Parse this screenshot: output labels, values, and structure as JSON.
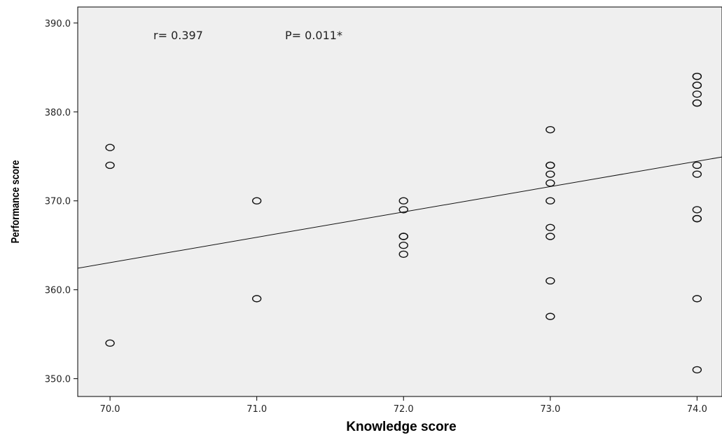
{
  "chart_data": {
    "type": "scatter",
    "title": "",
    "xlabel": "Knowledge score",
    "ylabel": "Performance score",
    "xlim": [
      69.78,
      74.17
    ],
    "ylim": [
      348.0,
      391.8
    ],
    "x_ticks": [
      70.0,
      71.0,
      72.0,
      73.0,
      74.0
    ],
    "x_tick_labels": [
      "70.0",
      "71.0",
      "72.0",
      "73.0",
      "74.0"
    ],
    "y_ticks": [
      350.0,
      360.0,
      370.0,
      380.0,
      390.0
    ],
    "y_tick_labels": [
      "350.0",
      "360.0",
      "370.0",
      "380.0",
      "390.0"
    ],
    "grid": false,
    "background_color": "#efefef",
    "marker": "open-circle",
    "annotations": [
      "r= 0.397",
      "P= 0.011*"
    ],
    "fit_line": {
      "slope": 2.85,
      "intercept": 163.55
    },
    "points": [
      {
        "x": 70,
        "y": 376
      },
      {
        "x": 70,
        "y": 374
      },
      {
        "x": 70,
        "y": 354
      },
      {
        "x": 71,
        "y": 370
      },
      {
        "x": 71,
        "y": 359
      },
      {
        "x": 72,
        "y": 370
      },
      {
        "x": 72,
        "y": 369
      },
      {
        "x": 72,
        "y": 366
      },
      {
        "x": 72,
        "y": 366
      },
      {
        "x": 72,
        "y": 365
      },
      {
        "x": 72,
        "y": 364
      },
      {
        "x": 73,
        "y": 378
      },
      {
        "x": 73,
        "y": 374
      },
      {
        "x": 73,
        "y": 374
      },
      {
        "x": 73,
        "y": 373
      },
      {
        "x": 73,
        "y": 372
      },
      {
        "x": 73,
        "y": 370
      },
      {
        "x": 73,
        "y": 367
      },
      {
        "x": 73,
        "y": 366
      },
      {
        "x": 73,
        "y": 361
      },
      {
        "x": 73,
        "y": 357
      },
      {
        "x": 74,
        "y": 384
      },
      {
        "x": 74,
        "y": 384
      },
      {
        "x": 74,
        "y": 383
      },
      {
        "x": 74,
        "y": 383
      },
      {
        "x": 74,
        "y": 382
      },
      {
        "x": 74,
        "y": 381
      },
      {
        "x": 74,
        "y": 381
      },
      {
        "x": 74,
        "y": 374
      },
      {
        "x": 74,
        "y": 373
      },
      {
        "x": 74,
        "y": 369
      },
      {
        "x": 74,
        "y": 368
      },
      {
        "x": 74,
        "y": 368
      },
      {
        "x": 74,
        "y": 359
      },
      {
        "x": 74,
        "y": 351
      }
    ]
  }
}
